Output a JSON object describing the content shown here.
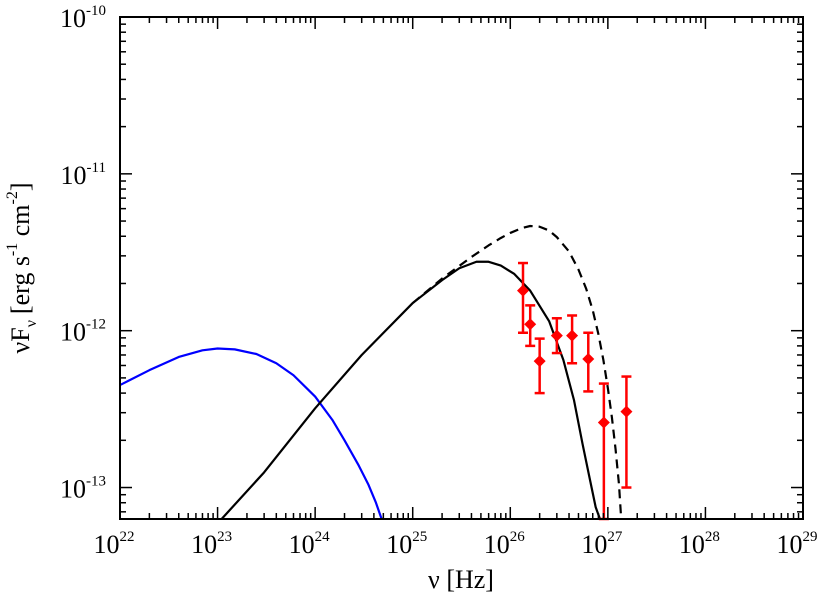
{
  "chart_data": {
    "type": "line",
    "title": "",
    "xlabel": "ν [Hz]",
    "ylabel": "νF_ν [erg s^-1 cm^-2]",
    "ylabel_parts": {
      "nu": "ν",
      "F": "F",
      "sub": "ν",
      "bracket": "[erg s",
      "exp1": "-1",
      "cm": " cm",
      "exp2": "-2",
      "close": "]"
    },
    "xlabel_parts": {
      "nu": "ν",
      "unit": " [Hz]"
    },
    "x_scale": "log",
    "y_scale": "log",
    "xlim": [
      1e+22,
      1e+29
    ],
    "ylim": [
      6.3e-14,
      1e-10
    ],
    "grid": false,
    "legend": "none",
    "x_ticks": [
      {
        "value": 1e+22,
        "base": "10",
        "exp": "22"
      },
      {
        "value": 1e+23,
        "base": "10",
        "exp": "23"
      },
      {
        "value": 1e+24,
        "base": "10",
        "exp": "24"
      },
      {
        "value": 1e+25,
        "base": "10",
        "exp": "25"
      },
      {
        "value": 1e+26,
        "base": "10",
        "exp": "26"
      },
      {
        "value": 1e+27,
        "base": "10",
        "exp": "27"
      },
      {
        "value": 1e+28,
        "base": "10",
        "exp": "28"
      },
      {
        "value": 1e+29,
        "base": "10",
        "exp": "29"
      }
    ],
    "y_ticks": [
      {
        "value": 1e-13,
        "base": "10",
        "exp": "-13"
      },
      {
        "value": 1e-12,
        "base": "10",
        "exp": "-12"
      },
      {
        "value": 1e-11,
        "base": "10",
        "exp": "-11"
      },
      {
        "value": 1e-10,
        "base": "10",
        "exp": "-10"
      }
    ],
    "series": [
      {
        "style": "solid",
        "color": "#0000ff",
        "x": [
          1e+22,
          2e+22,
          4e+22,
          7e+22,
          1e+23,
          1.5e+23,
          2.5e+23,
          4e+23,
          6e+23,
          1e+24,
          1.5e+24,
          2e+24,
          2.8e+24,
          3.5e+24,
          4.2e+24,
          4.8e+24
        ],
        "y": [
          4.5e-13,
          5.6e-13,
          6.8e-13,
          7.5e-13,
          7.7e-13,
          7.6e-13,
          7.1e-13,
          6.2e-13,
          5.2e-13,
          3.8e-13,
          2.7e-13,
          2e-13,
          1.38e-13,
          1.05e-13,
          8e-14,
          6.3e-14
        ]
      },
      {
        "style": "solid",
        "color": "#000000",
        "x": [
          1.1e+23,
          3e+23,
          1e+24,
          3e+24,
          1e+25,
          2e+25,
          3e+25,
          4.5e+25,
          6e+25,
          8e+25,
          1.1e+26,
          1.6e+26,
          2.5e+26,
          3.5e+26,
          4.5e+26,
          5.5e+26,
          6.5e+26,
          7.5e+26,
          8.3e+26
        ],
        "y": [
          6.3e-14,
          1.25e-13,
          3.2e-13,
          7e-13,
          1.5e-12,
          2.1e-12,
          2.5e-12,
          2.75e-12,
          2.75e-12,
          2.6e-12,
          2.3e-12,
          1.8e-12,
          1.15e-12,
          6.5e-13,
          3.6e-13,
          1.9e-13,
          1.15e-13,
          7.5e-14,
          6.3e-14
        ]
      },
      {
        "style": "dashed",
        "color": "#000000",
        "x": [
          1e+25,
          2e+25,
          4e+25,
          6e+25,
          8e+25,
          1e+26,
          1.3e+26,
          1.6e+26,
          2e+26,
          2.5e+26,
          3e+26,
          4e+26,
          5e+26,
          6e+26,
          7e+26,
          8e+26,
          9e+26,
          1e+27,
          1.1e+27,
          1.2e+27,
          1.3e+27,
          1.37e+27
        ],
        "y": [
          1.5e-12,
          2.15e-12,
          2.95e-12,
          3.5e-12,
          3.9e-12,
          4.2e-12,
          4.5e-12,
          4.65e-12,
          4.6e-12,
          4.35e-12,
          3.95e-12,
          3.2e-12,
          2.45e-12,
          1.85e-12,
          1.35e-12,
          9.5e-13,
          6.5e-13,
          4.3e-13,
          2.8e-13,
          1.75e-13,
          1.05e-13,
          6.3e-14
        ]
      }
    ],
    "data_points": {
      "color": "#ff0000",
      "marker": "diamond",
      "points": [
        {
          "x": 1.35e+26,
          "y": 1.8e-12,
          "y_low": 9.7e-13,
          "y_high": 2.7e-12
        },
        {
          "x": 1.6e+26,
          "y": 1.1e-12,
          "y_low": 8e-13,
          "y_high": 1.45e-12
        },
        {
          "x": 2e+26,
          "y": 6.4e-13,
          "y_low": 4e-13,
          "y_high": 8.9e-13
        },
        {
          "x": 3e+26,
          "y": 9.3e-13,
          "y_low": 7.2e-13,
          "y_high": 1.2e-12
        },
        {
          "x": 4.3e+26,
          "y": 9.3e-13,
          "y_low": 6.2e-13,
          "y_high": 1.25e-12
        },
        {
          "x": 6.3e+26,
          "y": 6.6e-13,
          "y_low": 4.1e-13,
          "y_high": 9.7e-13
        },
        {
          "x": 9.1e+26,
          "y": 2.6e-13,
          "y_low": 6.3e-14,
          "y_high": 4.6e-13
        },
        {
          "x": 1.55e+27,
          "y": 3.05e-13,
          "y_low": 1e-13,
          "y_high": 5.1e-13
        }
      ]
    }
  }
}
